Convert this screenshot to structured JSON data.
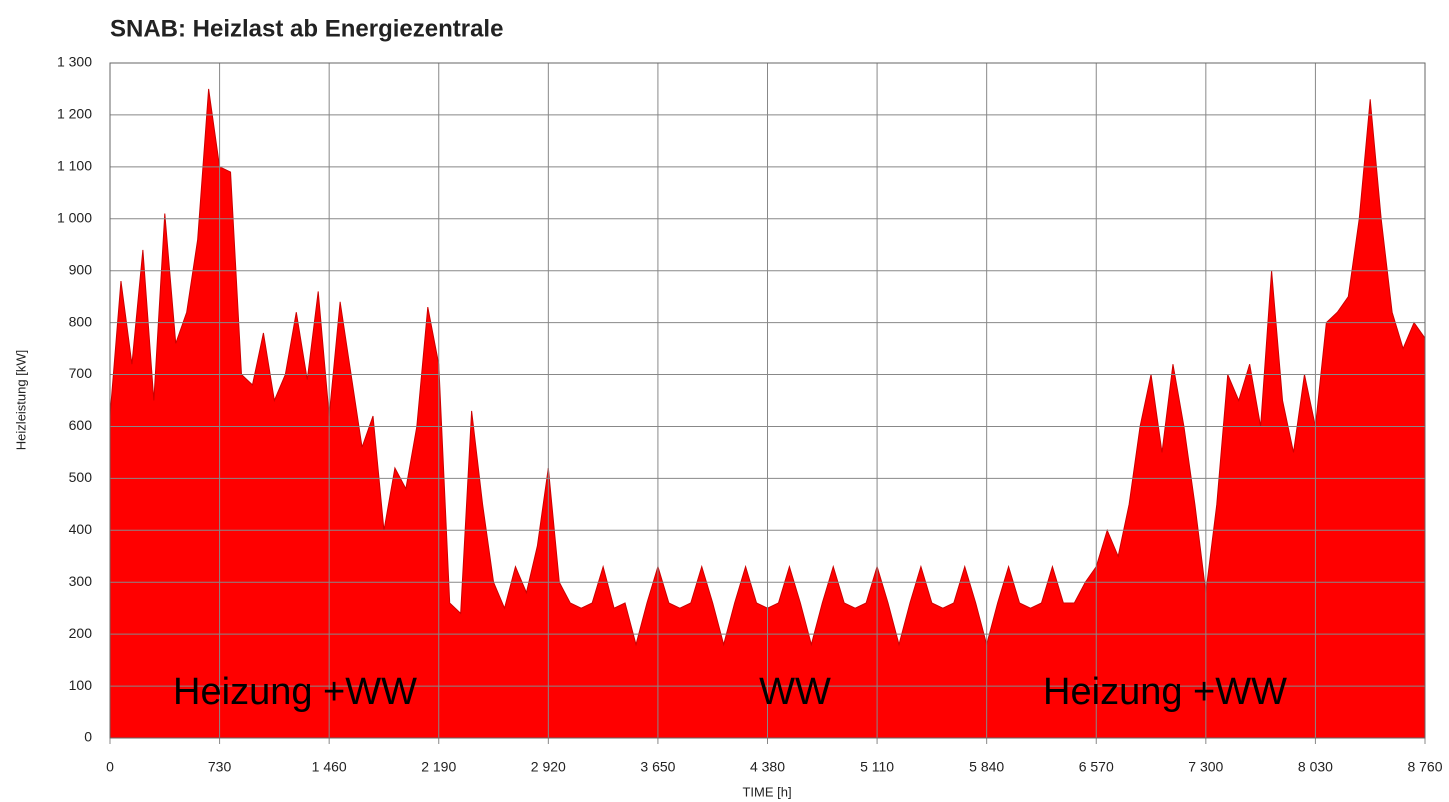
{
  "chart_data": {
    "type": "area",
    "title": "SNAB: Heizlast ab Energiezentrale",
    "y_label": "Heizleistung [kW]",
    "x_label": "TIME [h]",
    "color": "#ff0000",
    "grid": true,
    "annotations": [
      "Heizung +WW",
      "WW",
      "Heizung +WW"
    ],
    "xlim": [
      0,
      8760
    ],
    "ylim": [
      0,
      1300
    ],
    "xticks": [
      0,
      730,
      {
        "value": 1460,
        "label": "1 460"
      },
      {
        "value": 2190,
        "label": "2 190"
      },
      {
        "value": 2920,
        "label": "2 920"
      },
      {
        "value": 3650,
        "label": "3 650"
      },
      {
        "value": 4380,
        "label": "4 380"
      },
      {
        "value": 5110,
        "label": "5 110"
      },
      {
        "value": 5840,
        "label": "5 840"
      },
      {
        "value": 6570,
        "label": "6 570"
      },
      {
        "value": 7300,
        "label": "7 300"
      },
      {
        "value": 8030,
        "label": "8 030"
      },
      {
        "value": 8760,
        "label": "8 760"
      }
    ],
    "yticks": [
      0,
      100,
      200,
      300,
      400,
      500,
      600,
      700,
      800,
      900,
      {
        "value": 1000,
        "label": "1 000"
      },
      {
        "value": 1100,
        "label": "1 100"
      },
      {
        "value": 1200,
        "label": "1 200"
      },
      {
        "value": 1300,
        "label": "1 300"
      }
    ],
    "x": [
      0,
      73,
      146,
      219,
      292,
      365,
      438,
      511,
      584,
      657,
      730,
      803,
      876,
      949,
      1022,
      1095,
      1168,
      1241,
      1314,
      1387,
      1460,
      1533,
      1606,
      1679,
      1752,
      1825,
      1898,
      1971,
      2044,
      2117,
      2190,
      2263,
      2336,
      2409,
      2482,
      2555,
      2628,
      2701,
      2774,
      2847,
      2920,
      2993,
      3066,
      3139,
      3212,
      3285,
      3358,
      3431,
      3504,
      3577,
      3650,
      3723,
      3796,
      3869,
      3942,
      4015,
      4088,
      4161,
      4234,
      4307,
      4380,
      4453,
      4526,
      4599,
      4672,
      4745,
      4818,
      4891,
      4964,
      5037,
      5110,
      5183,
      5256,
      5329,
      5402,
      5475,
      5548,
      5621,
      5694,
      5767,
      5840,
      5913,
      5986,
      6059,
      6132,
      6205,
      6278,
      6351,
      6424,
      6497,
      6570,
      6643,
      6716,
      6789,
      6862,
      6935,
      7008,
      7081,
      7154,
      7227,
      7300,
      7373,
      7446,
      7519,
      7592,
      7665,
      7738,
      7811,
      7884,
      7957,
      8030,
      8103,
      8176,
      8249,
      8322,
      8395,
      8468,
      8541,
      8614,
      8687,
      8760
    ],
    "values": [
      620,
      880,
      720,
      940,
      650,
      1010,
      760,
      820,
      960,
      1250,
      1100,
      1090,
      700,
      680,
      780,
      650,
      700,
      820,
      690,
      860,
      620,
      840,
      700,
      560,
      620,
      400,
      520,
      480,
      600,
      830,
      720,
      260,
      240,
      630,
      450,
      300,
      250,
      330,
      280,
      370,
      520,
      300,
      260,
      250,
      260,
      330,
      250,
      260,
      180,
      260,
      330,
      260,
      250,
      260,
      330,
      260,
      180,
      260,
      330,
      260,
      250,
      260,
      330,
      260,
      180,
      260,
      330,
      260,
      250,
      260,
      330,
      260,
      180,
      260,
      330,
      260,
      250,
      260,
      330,
      260,
      180,
      260,
      330,
      260,
      250,
      260,
      330,
      260,
      260,
      300,
      330,
      400,
      350,
      450,
      600,
      700,
      550,
      720,
      600,
      450,
      280,
      450,
      700,
      650,
      720,
      600,
      900,
      650,
      550,
      700,
      600,
      800,
      820,
      850,
      1000,
      1230,
      1000,
      820,
      750,
      800,
      770
    ]
  }
}
